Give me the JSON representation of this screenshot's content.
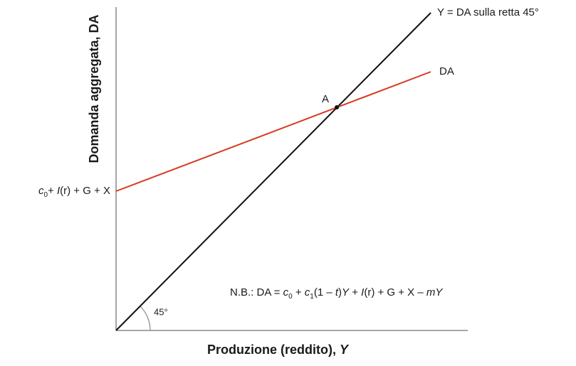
{
  "axes": {
    "y_label": "Domanda aggregata, DA",
    "x_label": [
      "Produzione (reddito), ",
      "Y"
    ]
  },
  "lines": [
    {
      "label": "Y = DA sulla retta 45°"
    },
    {
      "label": "DA"
    }
  ],
  "point": "A",
  "intercept_label": [
    "c",
    "0",
    "+ ",
    "I",
    "(r) + G + X"
  ],
  "angle_label": "45°",
  "note": [
    "N.B.: DA = ",
    "c",
    "0",
    " + ",
    "c",
    "1",
    "(1 – ",
    "t",
    ")",
    "Y",
    " + ",
    "I",
    "(r) + G + X – ",
    "m",
    "Y"
  ]
}
